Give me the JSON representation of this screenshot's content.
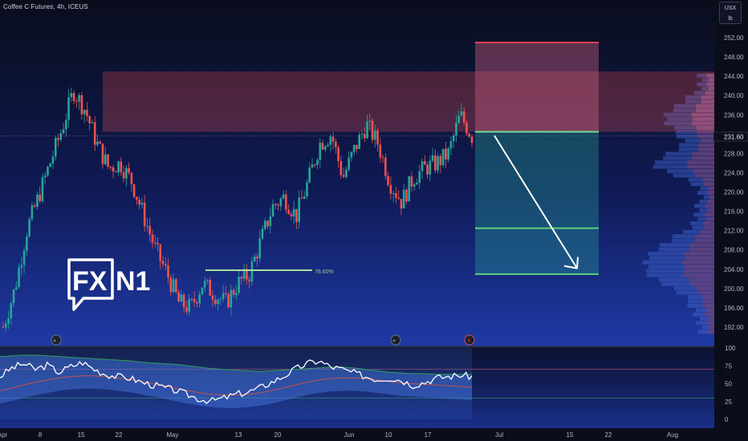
{
  "header": {
    "title": "Coffee C Futures, 4h, ICEUS"
  },
  "units": {
    "currency": "USX",
    "unit": "lb"
  },
  "logo": {
    "text_fx": "FX",
    "text_n1": "N1"
  },
  "price_label": "231.60",
  "fib_label": "78.60%",
  "colors": {
    "bg_top": "#0a0d1c",
    "bg_bottom": "#1f3aa6",
    "up": "#26a69a",
    "down": "#ef5350",
    "zone_red": "#ef5350",
    "zone_green": "#26a69a",
    "profile_blue": "#3c5ec4",
    "rsi_line": "#ffffff",
    "ma_green": "#2e9e5a",
    "ma_red": "#c25050"
  },
  "chart_data": [
    {
      "type": "candlestick",
      "title": "Coffee C Futures, 4h, ICEUS",
      "ylabel": "USX/lb",
      "ylim": [
        189,
        254
      ],
      "yticks": [
        "252.00",
        "248.00",
        "244.00",
        "240.00",
        "236.00",
        "232.00",
        "228.00",
        "224.00",
        "220.00",
        "216.00",
        "212.00",
        "208.00",
        "204.00",
        "200.00",
        "196.00",
        "192.00"
      ],
      "xticks": [
        "Apr",
        "8",
        "15",
        "22",
        "May",
        "13",
        "20",
        "Jun",
        "10",
        "17",
        "Jul",
        "15",
        "22",
        "Aug"
      ],
      "last_price": 231.6,
      "price_path": [
        {
          "date": "Apr 1",
          "close": 192
        },
        {
          "date": "Apr 4",
          "close": 200
        },
        {
          "date": "Apr 8",
          "close": 212
        },
        {
          "date": "Apr 11",
          "close": 219
        },
        {
          "date": "Apr 15",
          "close": 226
        },
        {
          "date": "Apr 17",
          "close": 233
        },
        {
          "date": "Apr 19",
          "close": 241
        },
        {
          "date": "Apr 20",
          "close": 237
        },
        {
          "date": "Apr 22",
          "close": 230
        },
        {
          "date": "Apr 24",
          "close": 225
        },
        {
          "date": "Apr 26",
          "close": 226
        },
        {
          "date": "Apr 28",
          "close": 222
        },
        {
          "date": "Apr 30",
          "close": 215
        },
        {
          "date": "May 2",
          "close": 208
        },
        {
          "date": "May 4",
          "close": 203
        },
        {
          "date": "May 7",
          "close": 197
        },
        {
          "date": "May 9",
          "close": 196
        },
        {
          "date": "May 11",
          "close": 201
        },
        {
          "date": "May 13",
          "close": 199
        },
        {
          "date": "May 15",
          "close": 197
        },
        {
          "date": "May 17",
          "close": 201
        },
        {
          "date": "May 19",
          "close": 203
        },
        {
          "date": "May 21",
          "close": 210
        },
        {
          "date": "May 23",
          "close": 217
        },
        {
          "date": "May 25",
          "close": 219
        },
        {
          "date": "May 27",
          "close": 215
        },
        {
          "date": "May 29",
          "close": 222
        },
        {
          "date": "May 31",
          "close": 230
        },
        {
          "date": "Jun 3",
          "close": 232
        },
        {
          "date": "Jun 5",
          "close": 223
        },
        {
          "date": "Jun 7",
          "close": 229
        },
        {
          "date": "Jun 9",
          "close": 234
        },
        {
          "date": "Jun 11",
          "close": 230
        },
        {
          "date": "Jun 13",
          "close": 222
        },
        {
          "date": "Jun 14",
          "close": 218
        },
        {
          "date": "Jun 16",
          "close": 223
        },
        {
          "date": "Jun 18",
          "close": 225
        },
        {
          "date": "Jun 20",
          "close": 226
        },
        {
          "date": "Jun 22",
          "close": 228
        },
        {
          "date": "Jun 24",
          "close": 236
        },
        {
          "date": "Jun 25",
          "close": 231.6
        }
      ],
      "zones": {
        "resistance": [
          232.5,
          245
        ],
        "stop_loss": 251,
        "entry": 232.5,
        "target_1": 212.5,
        "target_2": 203
      },
      "fib_level": {
        "label": "78.60%",
        "value": 203.8
      }
    },
    {
      "type": "line",
      "title": "",
      "ylim": [
        0,
        100
      ],
      "yticks": [
        "100",
        "75",
        "50",
        "25",
        "0"
      ],
      "levels": [
        70,
        30
      ],
      "series": [
        {
          "values": [
            60,
            72,
            78,
            70,
            76,
            66,
            74,
            80,
            70,
            63,
            60,
            58,
            52,
            48,
            44,
            40,
            34,
            28,
            26,
            30,
            35,
            38,
            44,
            52,
            60,
            70,
            78,
            82,
            74,
            70,
            65,
            60,
            56,
            58,
            55,
            48,
            52,
            58,
            60,
            62,
            60
          ]
        },
        {
          "values": [
            88,
            89,
            90,
            90,
            89,
            88,
            87,
            86,
            85,
            84,
            83,
            82,
            80,
            79,
            78,
            77,
            75,
            73,
            71,
            70,
            69,
            68,
            67,
            68,
            69,
            70,
            71,
            72,
            73,
            73,
            72,
            70,
            68,
            66,
            65,
            64,
            64,
            63,
            63,
            63,
            63
          ]
        },
        {
          "values": [
            40,
            44,
            48,
            52,
            55,
            58,
            60,
            61,
            61,
            60,
            58,
            56,
            53,
            50,
            47,
            43,
            40,
            37,
            35,
            34,
            34,
            35,
            37,
            40,
            44,
            48,
            52,
            55,
            57,
            58,
            58,
            57,
            55,
            53,
            51,
            50,
            49,
            48,
            47,
            46,
            45
          ]
        }
      ]
    }
  ]
}
